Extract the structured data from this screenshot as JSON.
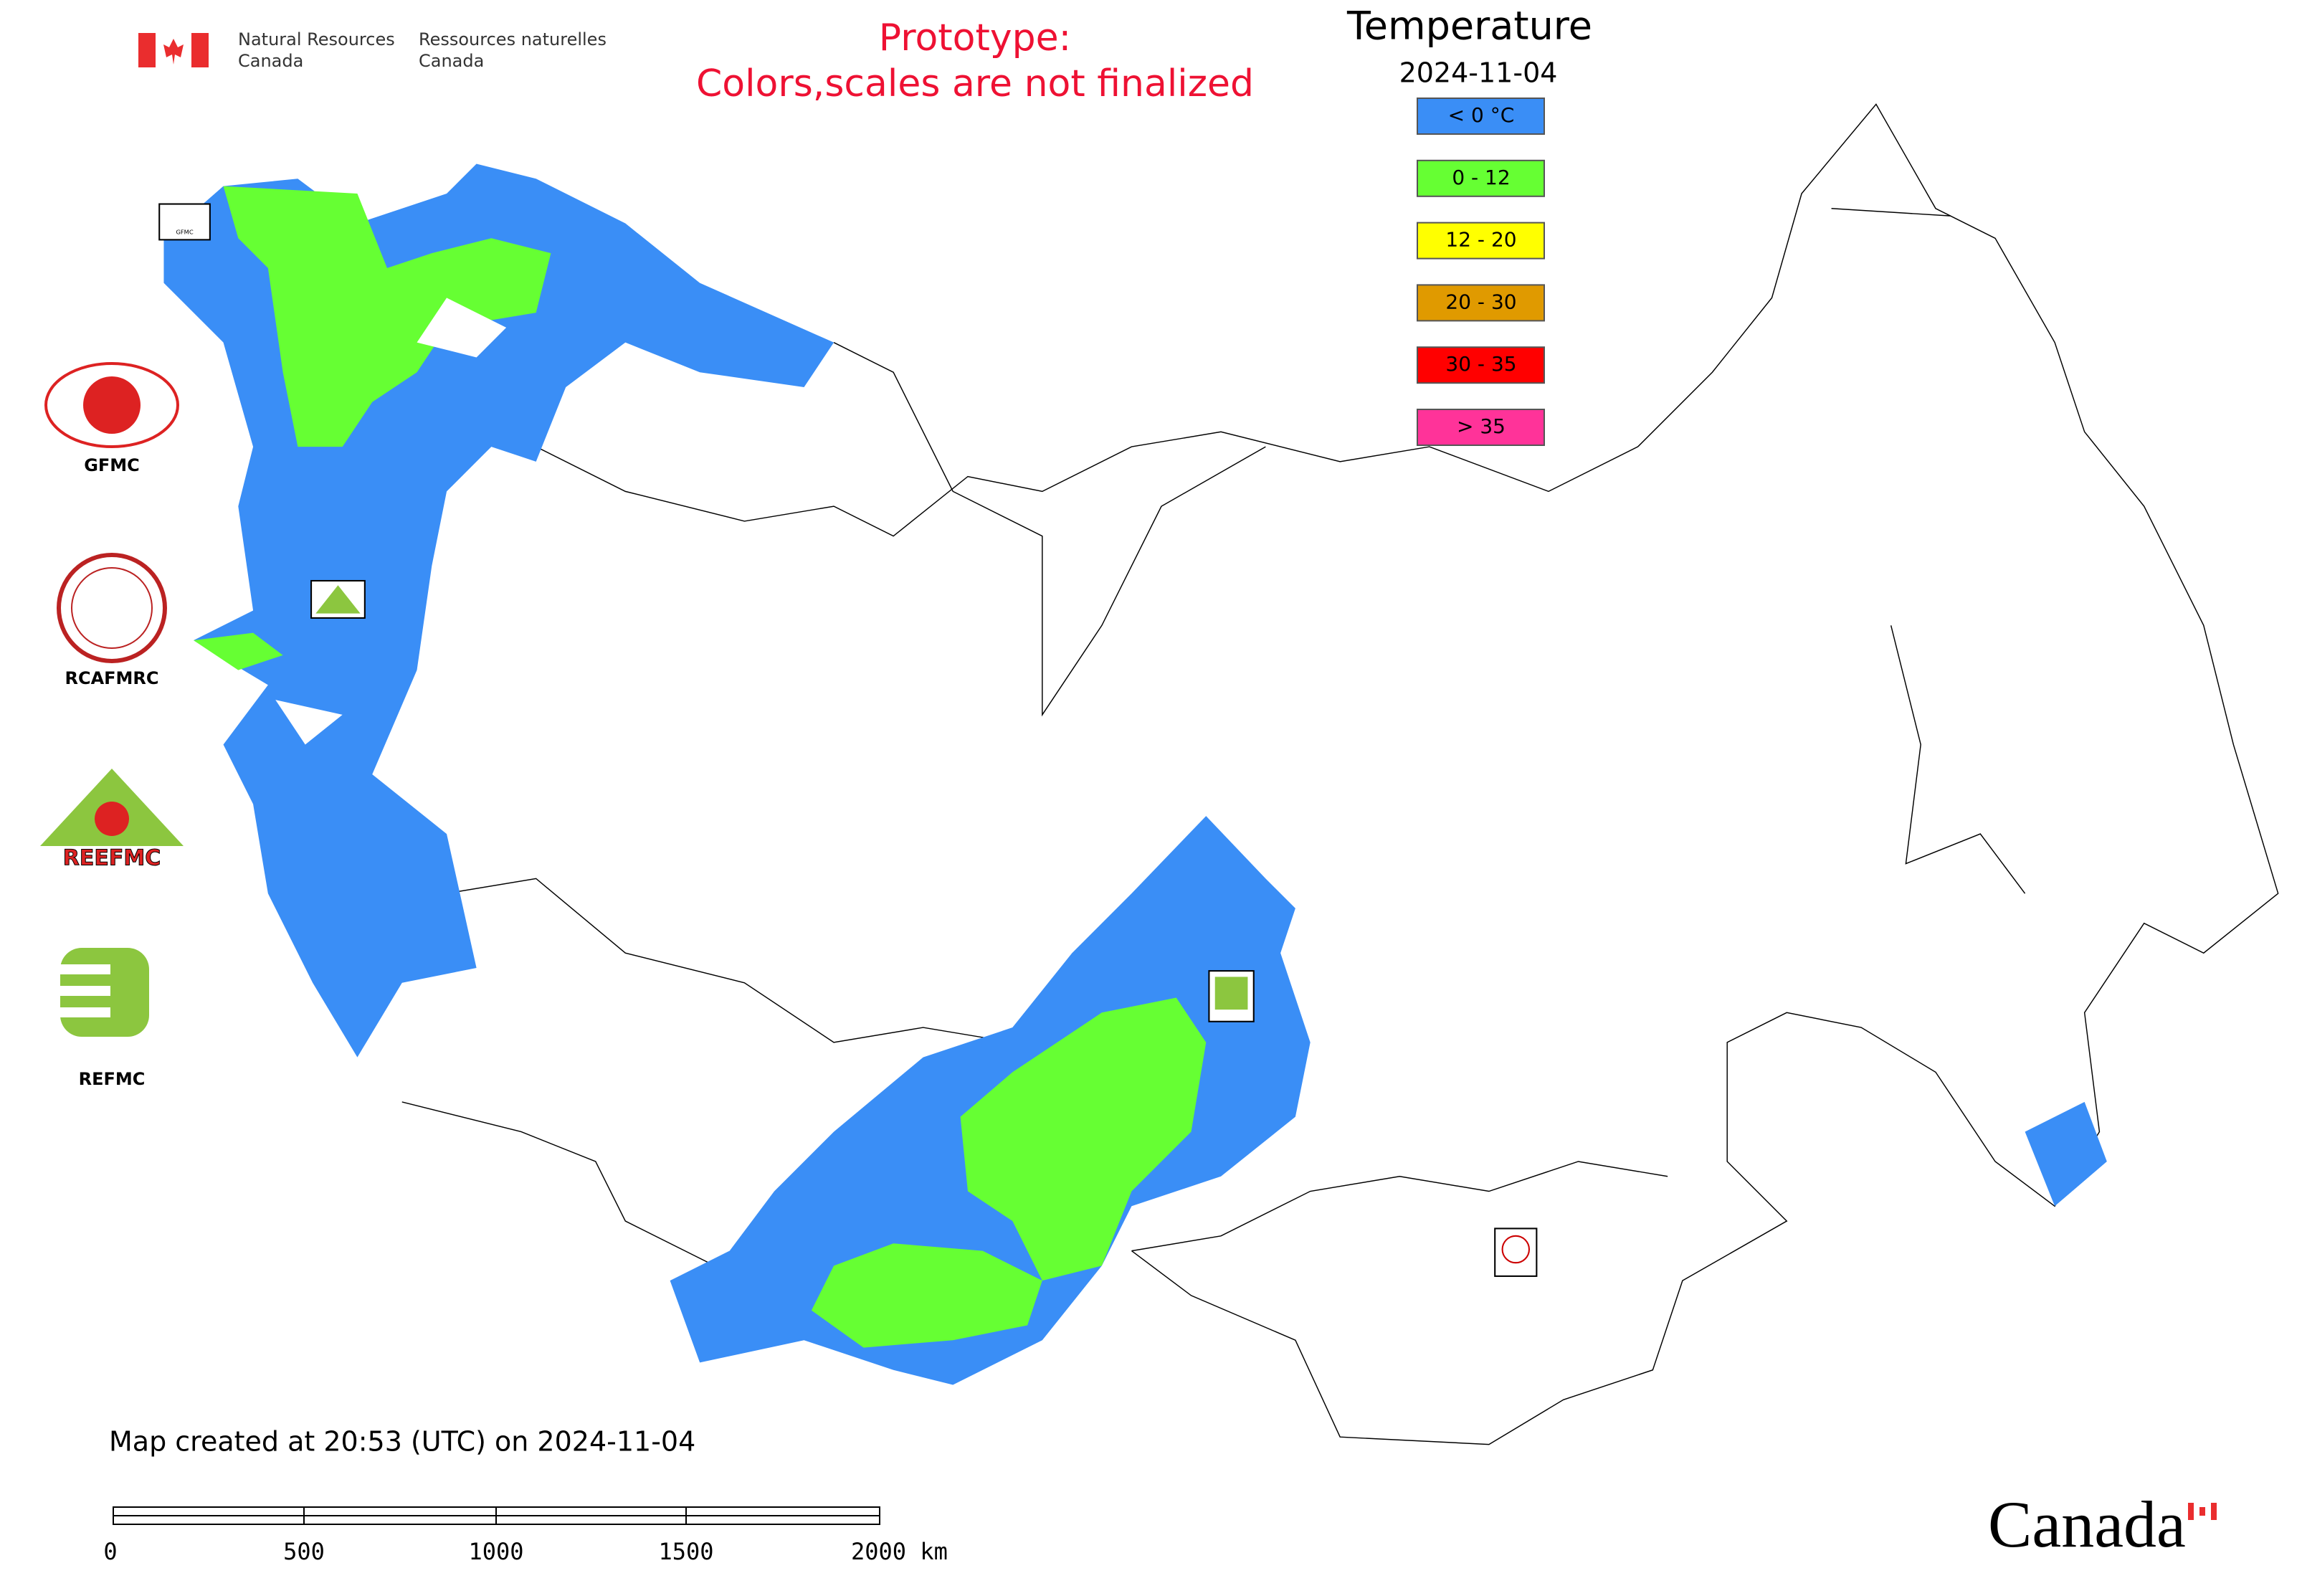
{
  "header": {
    "agency_en": [
      "Natural Resources",
      "Canada"
    ],
    "agency_fr": [
      "Ressources naturelles",
      "Canada"
    ],
    "notice": [
      "Prototype:",
      "Colors,scales are not finalized"
    ]
  },
  "legend": {
    "title": "Temperature",
    "date": "2024-11-04",
    "items": [
      {
        "label": "< 0 °C",
        "color": "#3a8ef6"
      },
      {
        "label": "0 - 12",
        "color": "#66ff33"
      },
      {
        "label": "12 - 20",
        "color": "#ffff00"
      },
      {
        "label": "20 - 30",
        "color": "#e09a00"
      },
      {
        "label": "30 - 35",
        "color": "#ff0000"
      },
      {
        "label": "> 35",
        "color": "#ff3399"
      }
    ]
  },
  "logos": [
    "GFMC",
    "RCAFMRC",
    "REEFMC",
    "REFMC"
  ],
  "footer": {
    "created": "Map created at 20:53 (UTC) on 2024-11-04",
    "scale_bar": [
      "0",
      "500",
      "1000",
      "1500",
      "2000 km"
    ],
    "wordmark": "Canada"
  }
}
